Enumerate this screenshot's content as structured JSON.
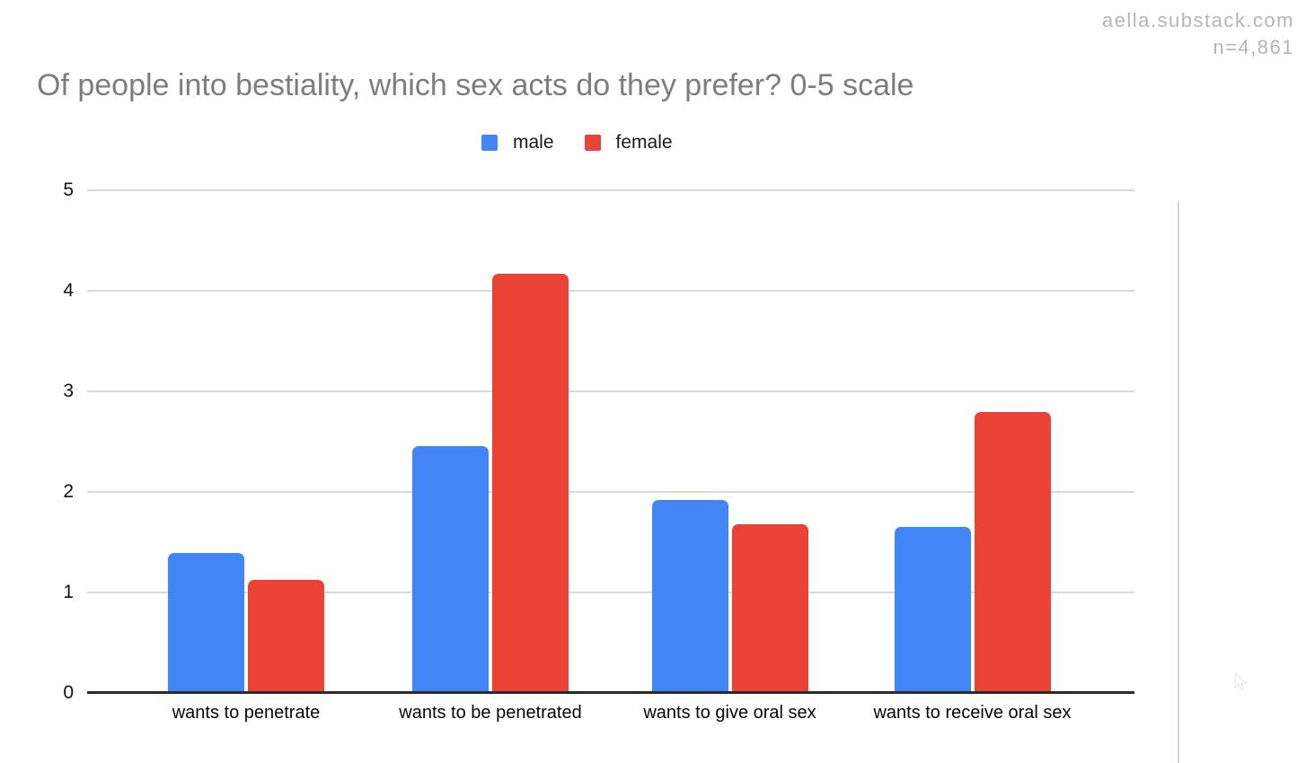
{
  "watermark": {
    "line1": "aella.substack.com",
    "line2": "n=4,861"
  },
  "title": "Of people into bestiality, which sex acts do they prefer? 0-5 scale",
  "legend": {
    "items": [
      {
        "label": "male",
        "color": "#4285F4"
      },
      {
        "label": "female",
        "color": "#EA4335"
      }
    ]
  },
  "chart_data": {
    "type": "bar",
    "title": "Of people into bestiality, which sex acts do they prefer? 0-5 scale",
    "categories": [
      "wants to penetrate",
      "wants to be penetrated",
      "wants to give oral sex",
      "wants to receive oral sex"
    ],
    "series": [
      {
        "name": "male",
        "color": "#4285F4",
        "values": [
          1.38,
          2.45,
          1.91,
          1.64
        ]
      },
      {
        "name": "female",
        "color": "#EA4335",
        "values": [
          1.12,
          4.16,
          1.67,
          2.79
        ]
      }
    ],
    "xlabel": "",
    "ylabel": "",
    "ylim": [
      0,
      5
    ],
    "yticks": [
      0,
      1,
      2,
      3,
      4,
      5
    ],
    "grid": true,
    "legend_position": "top-center",
    "colors": {
      "gridline": "#d9d9d9",
      "axis_line": "#2a2a2a",
      "title_text": "#7d7d7d",
      "watermark_text": "#b5b5b5"
    }
  }
}
